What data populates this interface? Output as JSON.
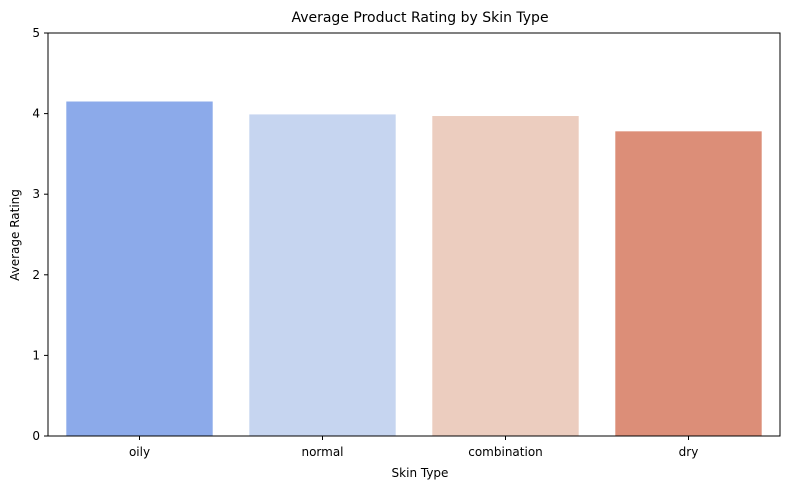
{
  "chart_data": {
    "type": "bar",
    "title": "Average Product Rating by Skin Type",
    "xlabel": "Skin Type",
    "ylabel": "Average Rating",
    "categories": [
      "oily",
      "normal",
      "combination",
      "dry"
    ],
    "values": [
      4.15,
      3.99,
      3.97,
      3.78
    ],
    "colors": [
      "#8caaea",
      "#c6d5f0",
      "#eccdbf",
      "#dc8e78"
    ],
    "ylim": [
      0,
      5
    ],
    "yticks": [
      "0",
      "1",
      "2",
      "3",
      "4",
      "5"
    ],
    "grid": false,
    "legend": "none"
  }
}
